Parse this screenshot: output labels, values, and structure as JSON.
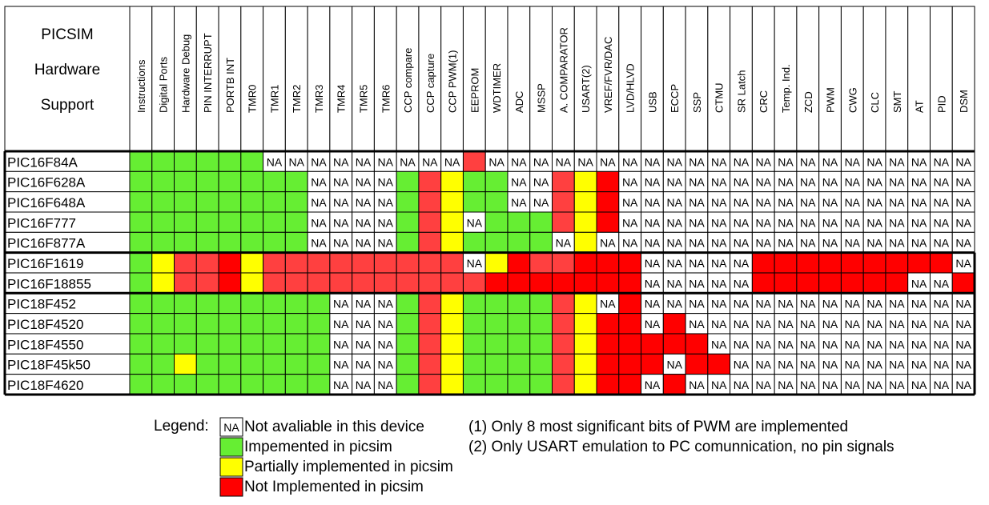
{
  "title_lines": [
    "PICSIM",
    "Hardware",
    "Support"
  ],
  "columns": [
    "Instructions",
    "Digital Ports",
    "Hardware Debug",
    "PIN INTERRUPT",
    "PORTB INT",
    "TMR0",
    "TMR1",
    "TMR2",
    "TMR3",
    "TMR4",
    "TMR5",
    "TMR6",
    "CCP compare",
    "CCP capture",
    "CCP PWM(1)",
    "EEPROM",
    "WDTIMER",
    "ADC",
    "MSSP",
    "A. COMPARATOR",
    "USART(2)",
    "VREF/FVR/DAC",
    "LVD/HLVD",
    "USB",
    "ECCP",
    "SSP",
    "CTMU",
    "SR Latch",
    "CRC",
    "Temp. Ind.",
    "ZCD",
    "PWM",
    "CWG",
    "CLC",
    "SMT",
    "AT",
    "PID",
    "DSM"
  ],
  "rows": [
    {
      "device": "PIC16F84A",
      "status": "GGGGGGNNNNNNNNNnNNNNNNNNNNNNNNNNNNNNNN"
    },
    {
      "device": "PIC16F628A",
      "status": "GGGGGGGGNNNNGnYGGNNnYRNNNNNNNNNNNNNNNN"
    },
    {
      "device": "PIC16F648A",
      "status": "GGGGGGGGNNNNGnYGGNNnYRNNNNNNNNNNNNNNNN"
    },
    {
      "device": "PIC16F777",
      "status": "GGGGGGGGNNNNGnYNGGGnYRNNNNNNNNNNNNNNNN"
    },
    {
      "device": "PIC16F877A",
      "status": "GGGGGGGGNNNNGnYGGGGNYNNNNNNNNNNNNNNNNN"
    },
    {
      "device": "PIC16F1619",
      "status": "GYnnRYnnnnnnnnnNYRnnRRRNNNNNRRRRRRRRRN"
    },
    {
      "device": "PIC16F18855",
      "status": "GYnnRYnnnnnnnnnnRRRRRRRNNNNNRRRRRRRNNR"
    },
    {
      "device": "PIC18F452",
      "status": "GGGGGGGGGNNNGnYGGGGnYNRNNNNNNNNNNNNNNN"
    },
    {
      "device": "PIC18F4520",
      "status": "GGGGGGGGGNNNGnYGGGGnYRRNRNNNNNNNNNNNNN"
    },
    {
      "device": "PIC18F4550",
      "status": "GGGGGGGGGNNNGnYGGGGnYRRRRRNNNNNNNNNNNN"
    },
    {
      "device": "PIC18F45k50",
      "status": "GGYGGGGGGNNNGnYGGGGnYRRRNRRNNNNNNNNNNN"
    },
    {
      "device": "PIC18F4620",
      "status": "GGGGGGGGGNNNGnYGGGGnYRRNRNNNNNNNNNNNNN"
    }
  ],
  "na_text": "NA",
  "colors": {
    "implemented": "#66ee33",
    "partial": "#ffff00",
    "not_implemented": "#ff0000",
    "not_implemented_light": "#ff4040",
    "not_available": "#ffffff"
  },
  "legend": {
    "label": "Legend:",
    "na_text": "NA",
    "items": [
      {
        "key": "N",
        "text": "Not avaliable in this device"
      },
      {
        "key": "G",
        "text": "Impemented in picsim"
      },
      {
        "key": "Y",
        "text": "Partially implemented in picsim"
      },
      {
        "key": "R",
        "text": "Not Implemented in picsim"
      }
    ],
    "notes": [
      "(1) Only 8 most significant bits of PWM are implemented",
      "(2) Only USART emulation to PC comunnication, no pin signals"
    ]
  }
}
